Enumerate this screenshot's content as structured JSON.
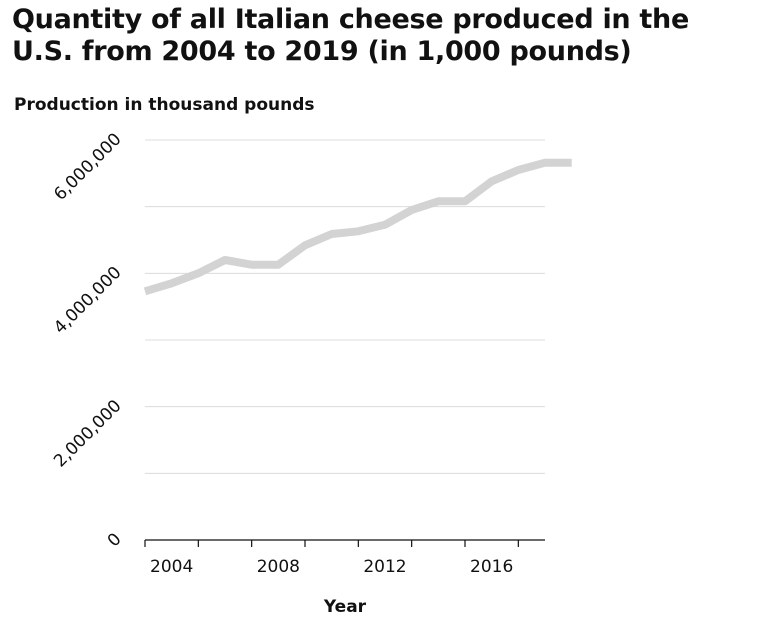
{
  "chart_data": {
    "type": "line",
    "title": "Quantity of all Italian cheese produced in the U.S. from 2004 to 2019 (in 1,000 pounds)",
    "xlabel": "Year",
    "ylabel": "Production in thousand pounds",
    "x": [
      2003,
      2004,
      2005,
      2006,
      2007,
      2008,
      2009,
      2010,
      2011,
      2012,
      2013,
      2014,
      2015,
      2016,
      2017,
      2018,
      2019
    ],
    "series": [
      {
        "values": [
          3730000,
          3850000,
          4000000,
          4200000,
          4130000,
          4130000,
          4420000,
          4590000,
          4630000,
          4730000,
          4950000,
          5080000,
          5080000,
          5380000,
          5550000,
          5660000,
          5660000
        ]
      }
    ],
    "xticks": [
      2004,
      2008,
      2012,
      2016
    ],
    "xtick_labels": [
      "2004",
      "2008",
      "2012",
      "2016"
    ],
    "yticks": [
      0,
      2000000,
      4000000,
      6000000
    ],
    "ytick_labels": [
      "0",
      "2,000,000",
      "4,000,000",
      "6,000,000"
    ],
    "xlim": [
      2003,
      2018
    ],
    "ylim": [
      0,
      6000000
    ],
    "grid": "horizontal",
    "line_color": "#d3d3d3"
  }
}
